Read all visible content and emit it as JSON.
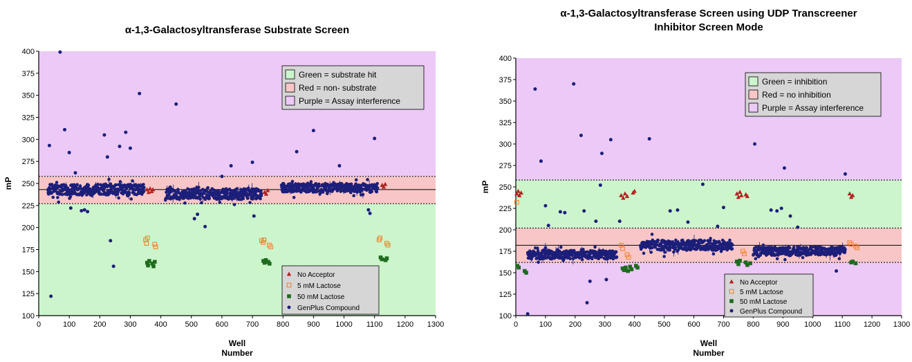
{
  "chart_data": [
    {
      "type": "scatter",
      "title": "α-1,3-Galactosyltransferase Substrate Screen",
      "xlabel": [
        "Well",
        "Number"
      ],
      "ylabel": "mP",
      "xlim": [
        0,
        1300
      ],
      "ylim": [
        100,
        400
      ],
      "xticks": [
        0,
        100,
        200,
        300,
        400,
        500,
        600,
        700,
        800,
        900,
        1000,
        1100,
        1200,
        1300
      ],
      "yticks": [
        100,
        125,
        150,
        175,
        200,
        225,
        250,
        275,
        300,
        325,
        350,
        375,
        400
      ],
      "bands": [
        {
          "from": 100,
          "to": 227,
          "color": "#ccf5cc"
        },
        {
          "from": 227,
          "to": 258,
          "color": "#f8c6c6"
        },
        {
          "from": 258,
          "to": 400,
          "color": "#ecc9f6"
        }
      ],
      "mean_line": 243,
      "dotted_lines": [
        227,
        258
      ],
      "zone_legend": [
        {
          "label": "Green = substrate hit",
          "color": "#ccf5cc"
        },
        {
          "label": "Red = non- substrate",
          "color": "#f8c6c6"
        },
        {
          "label": "Purple = Assay interference",
          "color": "#ecc9f6"
        }
      ],
      "zone_legend_position": "top-right",
      "series_legend_position": "bottom-right",
      "series": [
        {
          "name": "No Acceptor",
          "marker": "triangle",
          "color": "#b22222",
          "points": [
            [
              355,
              243
            ],
            [
              360,
              240
            ],
            [
              365,
              244
            ],
            [
              370,
              241
            ],
            [
              374,
              243
            ],
            [
              740,
              240
            ],
            [
              745,
              238
            ],
            [
              750,
              242
            ],
            [
              1125,
              248
            ],
            [
              1130,
              246
            ],
            [
              1135,
              249
            ]
          ]
        },
        {
          "name": "5 mM Lactose",
          "marker": "open-square",
          "color": "#f08a3c",
          "points": [
            [
              350,
              186
            ],
            [
              353,
              182
            ],
            [
              356,
              188
            ],
            [
              380,
              181
            ],
            [
              383,
              178
            ],
            [
              730,
              185
            ],
            [
              735,
              183
            ],
            [
              738,
              186
            ],
            [
              755,
              180
            ],
            [
              760,
              178
            ],
            [
              1115,
              186
            ],
            [
              1118,
              188
            ],
            [
              1140,
              182
            ],
            [
              1144,
              180
            ]
          ]
        },
        {
          "name": "50 mM Lactose",
          "marker": "square",
          "color": "#1e6b1e",
          "points": [
            [
              355,
              160
            ],
            [
              358,
              157
            ],
            [
              362,
              162
            ],
            [
              372,
              159
            ],
            [
              376,
              156
            ],
            [
              380,
              161
            ],
            [
              736,
              162
            ],
            [
              740,
              160
            ],
            [
              744,
              163
            ],
            [
              752,
              161
            ],
            [
              756,
              159
            ],
            [
              1120,
              166
            ],
            [
              1124,
              164
            ],
            [
              1136,
              163
            ],
            [
              1140,
              165
            ]
          ]
        },
        {
          "name": "GenPlus Compound",
          "marker": "circle",
          "color": "#1c1f7a",
          "points": [
            [
              35,
              293
            ],
            [
              40,
              122
            ],
            [
              70,
              399
            ],
            [
              85,
              311
            ],
            [
              100,
              285
            ],
            [
              105,
              222
            ],
            [
              120,
              262
            ],
            [
              140,
              219
            ],
            [
              150,
              220
            ],
            [
              160,
              218
            ],
            [
              215,
              305
            ],
            [
              225,
              280
            ],
            [
              235,
              185
            ],
            [
              245,
              156
            ],
            [
              265,
              292
            ],
            [
              285,
              308
            ],
            [
              300,
              290
            ],
            [
              330,
              352
            ],
            [
              450,
              340
            ],
            [
              510,
              210
            ],
            [
              520,
              215
            ],
            [
              545,
              201
            ],
            [
              600,
              258
            ],
            [
              630,
              270
            ],
            [
              700,
              274
            ],
            [
              705,
              213
            ],
            [
              845,
              286
            ],
            [
              900,
              310
            ],
            [
              985,
              270
            ],
            [
              1080,
              220
            ],
            [
              1085,
              216
            ],
            [
              1100,
              301
            ]
          ]
        }
      ],
      "clusters": [
        {
          "x_from": 30,
          "x_to": 345,
          "center": 243,
          "spread": 6
        },
        {
          "x_from": 415,
          "x_to": 730,
          "center": 238,
          "spread": 6
        },
        {
          "x_from": 795,
          "x_to": 1110,
          "center": 245,
          "spread": 5
        }
      ]
    },
    {
      "type": "scatter",
      "title": [
        "α-1,3-Galactosyltransferase Screen using UDP Transcreener",
        "Inhibitor Screen Mode"
      ],
      "xlabel": [
        "Well",
        "Number"
      ],
      "ylabel": "mP",
      "xlim": [
        0,
        1300
      ],
      "ylim": [
        100,
        400
      ],
      "xticks": [
        0,
        100,
        200,
        300,
        400,
        500,
        600,
        700,
        800,
        900,
        1000,
        1100,
        1200,
        1300
      ],
      "yticks": [
        100,
        125,
        150,
        175,
        200,
        225,
        250,
        275,
        300,
        325,
        350,
        375,
        400
      ],
      "bands": [
        {
          "from": 100,
          "to": 162,
          "color": "#ecc9f6"
        },
        {
          "from": 162,
          "to": 202,
          "color": "#f8c6c6"
        },
        {
          "from": 202,
          "to": 258,
          "color": "#ccf5cc"
        },
        {
          "from": 258,
          "to": 400,
          "color": "#ecc9f6"
        }
      ],
      "mean_line": 182,
      "dotted_lines": [
        162,
        202,
        258
      ],
      "zone_legend": [
        {
          "label": "Green = inhibition",
          "color": "#ccf5cc"
        },
        {
          "label": "Red = no inhibition",
          "color": "#f8c6c6"
        },
        {
          "label": "Purple = Assay interference",
          "color": "#ecc9f6"
        }
      ],
      "zone_legend_position": "top-right",
      "series_legend_position": "bottom-center",
      "series": [
        {
          "name": "No Acceptor",
          "marker": "triangle",
          "color": "#b22222",
          "points": [
            [
              3,
              242
            ],
            [
              8,
              245
            ],
            [
              12,
              240
            ],
            [
              18,
              243
            ],
            [
              355,
              240
            ],
            [
              362,
              237
            ],
            [
              368,
              242
            ],
            [
              375,
              239
            ],
            [
              395,
              243
            ],
            [
              400,
              245
            ],
            [
              745,
              242
            ],
            [
              750,
              238
            ],
            [
              755,
              244
            ],
            [
              760,
              240
            ],
            [
              775,
              241
            ],
            [
              780,
              239
            ],
            [
              1125,
              242
            ],
            [
              1130,
              238
            ],
            [
              1135,
              240
            ]
          ]
        },
        {
          "name": "5 mM Lactose",
          "marker": "open-square",
          "color": "#f08a3c",
          "points": [
            [
              3,
              232
            ],
            [
              355,
              182
            ],
            [
              360,
              178
            ],
            [
              375,
              171
            ],
            [
              380,
              168
            ],
            [
              765,
              175
            ],
            [
              770,
              172
            ],
            [
              1125,
              185
            ],
            [
              1130,
              183
            ],
            [
              1145,
              181
            ],
            [
              1150,
              179
            ]
          ]
        },
        {
          "name": "50 mM Lactose",
          "marker": "square",
          "color": "#1e6b1e",
          "points": [
            [
              5,
              158
            ],
            [
              10,
              156
            ],
            [
              30,
              152
            ],
            [
              35,
              150
            ],
            [
              360,
              155
            ],
            [
              365,
              153
            ],
            [
              370,
              156
            ],
            [
              378,
              152
            ],
            [
              385,
              157
            ],
            [
              390,
              154
            ],
            [
              405,
              158
            ],
            [
              410,
              156
            ],
            [
              745,
              163
            ],
            [
              750,
              160
            ],
            [
              755,
              164
            ],
            [
              775,
              162
            ],
            [
              780,
              159
            ],
            [
              790,
              161
            ],
            [
              1130,
              162
            ],
            [
              1135,
              163
            ],
            [
              1145,
              161
            ]
          ]
        },
        {
          "name": "GenPlus Compound",
          "marker": "circle",
          "color": "#1c1f7a",
          "points": [
            [
              40,
              102
            ],
            [
              65,
              364
            ],
            [
              85,
              280
            ],
            [
              100,
              228
            ],
            [
              110,
              205
            ],
            [
              150,
              221
            ],
            [
              165,
              220
            ],
            [
              195,
              370
            ],
            [
              220,
              310
            ],
            [
              230,
              222
            ],
            [
              240,
              115
            ],
            [
              250,
              140
            ],
            [
              270,
              210
            ],
            [
              285,
              252
            ],
            [
              290,
              289
            ],
            [
              305,
              142
            ],
            [
              320,
              305
            ],
            [
              350,
              210
            ],
            [
              450,
              306
            ],
            [
              520,
              222
            ],
            [
              545,
              223
            ],
            [
              580,
              209
            ],
            [
              630,
              253
            ],
            [
              680,
              204
            ],
            [
              700,
              226
            ],
            [
              805,
              300
            ],
            [
              860,
              223
            ],
            [
              880,
              222
            ],
            [
              895,
              225
            ],
            [
              905,
              272
            ],
            [
              925,
              216
            ],
            [
              950,
              203
            ],
            [
              1080,
              152
            ],
            [
              1110,
              265
            ]
          ]
        }
      ],
      "clusters": [
        {
          "x_from": 40,
          "x_to": 340,
          "center": 171,
          "spread": 5
        },
        {
          "x_from": 420,
          "x_to": 730,
          "center": 182,
          "spread": 6
        },
        {
          "x_from": 800,
          "x_to": 1110,
          "center": 175,
          "spread": 5
        }
      ]
    }
  ]
}
